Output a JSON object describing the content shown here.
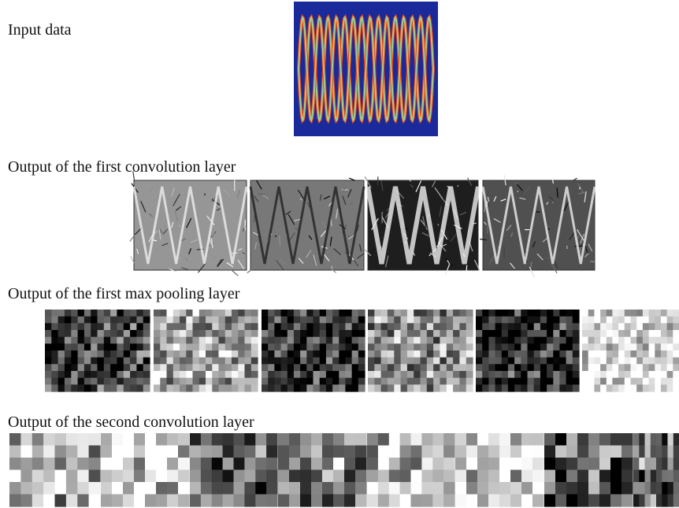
{
  "sections": [
    {
      "label": "Input data"
    },
    {
      "label": "Output of the first convolution layer"
    },
    {
      "label": "Output of the first max pooling layer"
    },
    {
      "label": "Output of the second convolution layer"
    }
  ]
}
